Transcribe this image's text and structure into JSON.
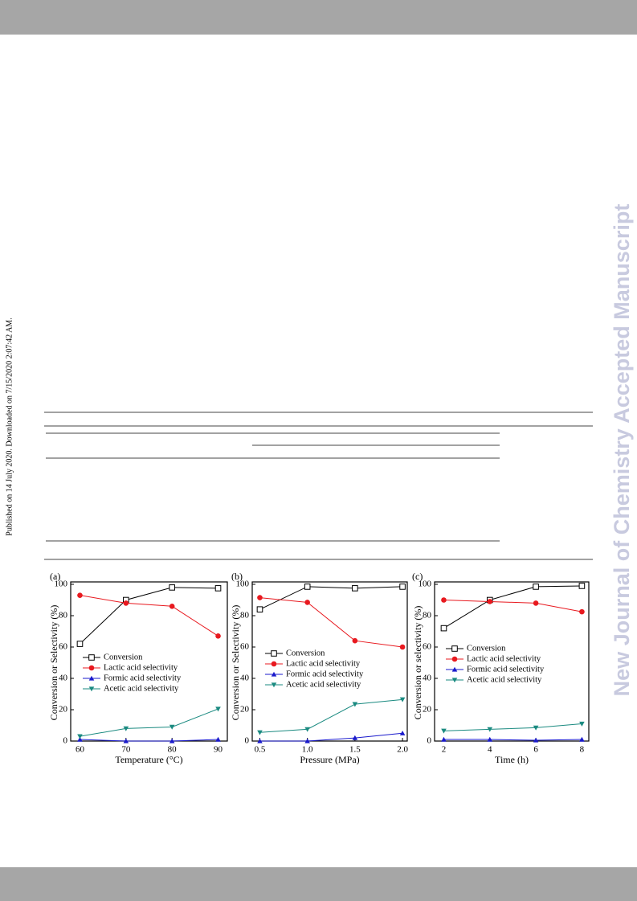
{
  "sidebar": {
    "journal": "New Journal of Chemistry Accepted Manuscript",
    "published": "Published on 14 July 2020. Downloaded on 7/15/2020 2:07:42 AM."
  },
  "chart_data": [
    {
      "type": "line",
      "panel_label": "(a)",
      "x_label": "Temperature (°C)",
      "y_label": "Conversion or Selectivity (%)",
      "x": [
        60,
        70,
        80,
        90
      ],
      "xlim": [
        58,
        92
      ],
      "xticks": [
        60,
        70,
        80,
        90
      ],
      "ylim": [
        0,
        100
      ],
      "yticks": [
        0,
        20,
        40,
        60,
        80,
        100
      ],
      "series": [
        {
          "name": "Conversion",
          "color": "#000000",
          "marker": "square-open",
          "values": [
            62,
            90,
            98,
            97.5
          ]
        },
        {
          "name": "Lactic acid selectivity",
          "color": "#e8191f",
          "marker": "circle",
          "values": [
            93,
            88,
            86,
            67
          ]
        },
        {
          "name": "Formic acid selectivity",
          "color": "#1a1acc",
          "marker": "triangle-up",
          "values": [
            1,
            0,
            0,
            1
          ]
        },
        {
          "name": "Acetic acid selectivity",
          "color": "#1a8a80",
          "marker": "triangle-down",
          "values": [
            3,
            8,
            9,
            20.5
          ]
        }
      ]
    },
    {
      "type": "line",
      "panel_label": "(b)",
      "x_label": "Pressure (MPa)",
      "y_label": "Conversion or Selectivity (%)",
      "x": [
        0.5,
        1.0,
        1.5,
        2.0
      ],
      "xlim": [
        0.42,
        2.05
      ],
      "xticks": [
        0.5,
        {
          "value": 1,
          "label": "1.0"
        },
        1.5,
        {
          "value": 2,
          "label": "2.0"
        }
      ],
      "ylim": [
        0,
        100
      ],
      "yticks": [
        0,
        20,
        40,
        60,
        80,
        100
      ],
      "series": [
        {
          "name": "Conversion",
          "color": "#000000",
          "marker": "square-open",
          "values": [
            84,
            98.5,
            97.5,
            98.5
          ]
        },
        {
          "name": "Lactic acid selectivity",
          "color": "#e8191f",
          "marker": "circle",
          "values": [
            91.5,
            88.5,
            64,
            60
          ]
        },
        {
          "name": "Formic acid selectivity",
          "color": "#1a1acc",
          "marker": "triangle-up",
          "values": [
            0,
            0,
            2,
            5
          ]
        },
        {
          "name": "Acetic acid selectivity",
          "color": "#1a8a80",
          "marker": "triangle-down",
          "values": [
            5.5,
            7.5,
            23.5,
            26.5
          ]
        }
      ]
    },
    {
      "type": "line",
      "panel_label": "(c)",
      "x_label": "Time (h)",
      "y_label": "Conversion or selectivity (%)",
      "x": [
        2,
        4,
        6,
        8
      ],
      "xlim": [
        1.6,
        8.3
      ],
      "xticks": [
        2,
        4,
        6,
        8
      ],
      "ylim": [
        0,
        100
      ],
      "yticks": [
        0,
        20,
        40,
        60,
        80,
        100
      ],
      "series": [
        {
          "name": "Conversion",
          "color": "#000000",
          "marker": "square-open",
          "values": [
            72,
            90,
            98.5,
            99
          ]
        },
        {
          "name": "Lactic acid selectivity",
          "color": "#e8191f",
          "marker": "circle",
          "values": [
            90,
            89,
            88,
            82.5
          ]
        },
        {
          "name": "Formic acid selectivity",
          "color": "#1a1acc",
          "marker": "triangle-up",
          "values": [
            1,
            1,
            0.5,
            1
          ]
        },
        {
          "name": "Acetic acid selectivity",
          "color": "#1a8a80",
          "marker": "triangle-down",
          "values": [
            6.5,
            7.5,
            8.5,
            11
          ]
        }
      ]
    }
  ]
}
